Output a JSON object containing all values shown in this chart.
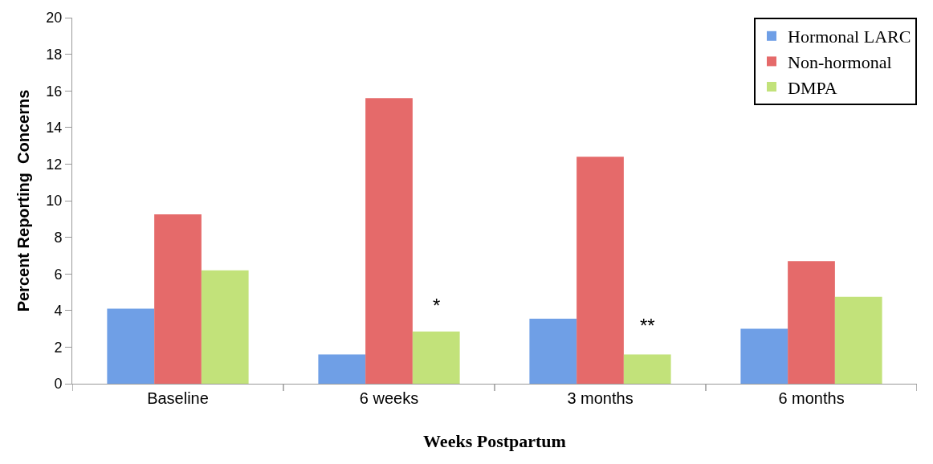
{
  "chart_data": {
    "type": "bar",
    "xlabel": "Weeks Postpartum",
    "ylabel": "Percent Reporting  Concerns",
    "categories": [
      "Baseline",
      "6 weeks",
      "3 months",
      "6 months"
    ],
    "series": [
      {
        "name": "Hormonal LARC",
        "color": "#6f9fe6",
        "values": [
          4.1,
          1.6,
          3.55,
          3.0
        ]
      },
      {
        "name": "Non-hormonal",
        "color": "#e56a6a",
        "values": [
          9.25,
          15.6,
          12.4,
          6.7
        ]
      },
      {
        "name": "DMPA",
        "color": "#c2e27a",
        "values": [
          6.2,
          2.85,
          1.6,
          4.75
        ]
      }
    ],
    "annotations": [
      "*",
      "**"
    ],
    "ylim": [
      0,
      20
    ],
    "yticks": [
      0,
      2,
      4,
      6,
      8,
      10,
      12,
      14,
      16,
      18,
      20
    ],
    "legend": "top right"
  }
}
